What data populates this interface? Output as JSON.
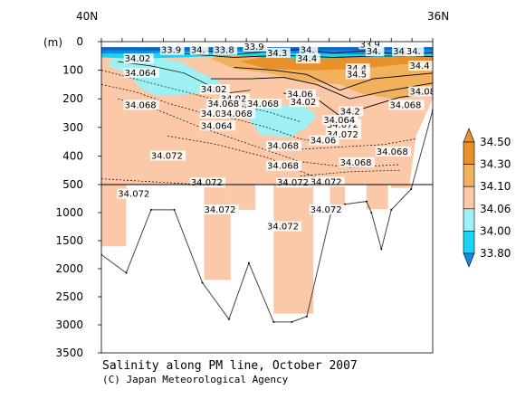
{
  "chart_data": {
    "type": "heatmap",
    "title": "Salinity along PM line, October 2007",
    "credit": "(C) Japan Meteorological Agency",
    "x_labels": {
      "left": "40N",
      "right": "36N"
    },
    "y_unit": "(m)",
    "y_ticks_upper": [
      0,
      100,
      200,
      300,
      400,
      500
    ],
    "y_ticks_lower": [
      1000,
      1500,
      2000,
      2500,
      3000,
      3500
    ],
    "y_break_depth": 500,
    "colorbar": {
      "levels": [
        "34.50",
        "34.30",
        "34.10",
        "34.06",
        "34.00",
        "33.80"
      ],
      "colors": [
        "#e9902a",
        "#f2b25d",
        "#fcc9a8",
        "#9ff0f2",
        "#18d6f2",
        "#1389e6"
      ]
    },
    "bottom_depth_profile": [
      {
        "x": 0.0,
        "depth": 1750
      },
      {
        "x": 0.075,
        "depth": 2075
      },
      {
        "x": 0.15,
        "depth": 950
      },
      {
        "x": 0.22,
        "depth": 950
      },
      {
        "x": 0.305,
        "depth": 2250
      },
      {
        "x": 0.385,
        "depth": 2900
      },
      {
        "x": 0.445,
        "depth": 1900
      },
      {
        "x": 0.52,
        "depth": 2950
      },
      {
        "x": 0.575,
        "depth": 2950
      },
      {
        "x": 0.62,
        "depth": 2850
      },
      {
        "x": 0.695,
        "depth": 950
      },
      {
        "x": 0.735,
        "depth": 850
      },
      {
        "x": 0.8,
        "depth": 800
      },
      {
        "x": 0.815,
        "depth": 1000
      },
      {
        "x": 0.845,
        "depth": 1650
      },
      {
        "x": 0.875,
        "depth": 950
      },
      {
        "x": 0.935,
        "depth": 580
      },
      {
        "x": 1.0,
        "depth": 240
      }
    ],
    "labels": [
      {
        "text": "34.02",
        "x": 0.07,
        "depth": 70
      },
      {
        "text": "34.064",
        "x": 0.07,
        "depth": 120
      },
      {
        "text": "34.068",
        "x": 0.07,
        "depth": 232
      },
      {
        "text": "34.02",
        "x": 0.3,
        "depth": 178
      },
      {
        "text": "34.02",
        "x": 0.36,
        "depth": 210
      },
      {
        "text": "34.068",
        "x": 0.32,
        "depth": 228
      },
      {
        "text": "34.06",
        "x": 0.3,
        "depth": 262
      },
      {
        "text": "34.068",
        "x": 0.36,
        "depth": 262
      },
      {
        "text": "34.064",
        "x": 0.3,
        "depth": 305
      },
      {
        "text": "34.068",
        "x": 0.44,
        "depth": 228
      },
      {
        "text": "34.06",
        "x": 0.56,
        "depth": 195
      },
      {
        "text": "34.02",
        "x": 0.57,
        "depth": 222
      },
      {
        "text": "34.072",
        "x": 0.15,
        "depth": 410
      },
      {
        "text": "34.068",
        "x": 0.5,
        "depth": 375
      },
      {
        "text": "34.068",
        "x": 0.5,
        "depth": 445
      },
      {
        "text": "34.2",
        "x": 0.72,
        "depth": 255
      },
      {
        "text": "34.072",
        "x": 0.68,
        "depth": 300
      },
      {
        "text": "34.072",
        "x": 0.68,
        "depth": 335
      },
      {
        "text": "34.06",
        "x": 0.63,
        "depth": 356
      },
      {
        "text": "34.064",
        "x": 0.67,
        "depth": 285
      },
      {
        "text": "34.068",
        "x": 0.72,
        "depth": 433
      },
      {
        "text": "34.068",
        "x": 0.83,
        "depth": 395
      },
      {
        "text": "34.068",
        "x": 0.87,
        "depth": 232
      },
      {
        "text": "34.08",
        "x": 0.93,
        "depth": 185
      },
      {
        "text": "34.4",
        "x": 0.59,
        "depth": 70
      },
      {
        "text": "34.3",
        "x": 0.5,
        "depth": 50
      },
      {
        "text": "34.4",
        "x": 0.74,
        "depth": 105
      },
      {
        "text": "34.5",
        "x": 0.74,
        "depth": 125
      },
      {
        "text": "34.4",
        "x": 0.93,
        "depth": 95
      },
      {
        "text": "34.072",
        "x": 0.05,
        "depth": 720
      },
      {
        "text": "34.072",
        "x": 0.31,
        "depth": 1000
      },
      {
        "text": "34.072",
        "x": 0.5,
        "depth": 1300
      },
      {
        "text": "34.072",
        "x": 0.63,
        "depth": 1000
      },
      {
        "text": "34.072",
        "x": 0.27,
        "depth": 520
      },
      {
        "text": "34.072",
        "x": 0.53,
        "depth": 520
      },
      {
        "text": "34.072",
        "x": 0.63,
        "depth": 505
      },
      {
        "text": "33.9",
        "x": 0.43,
        "depth": 28
      },
      {
        "text": "34.",
        "x": 0.27,
        "depth": 40
      },
      {
        "text": "33.8",
        "x": 0.34,
        "depth": 40
      },
      {
        "text": "34.",
        "x": 0.6,
        "depth": 40
      },
      {
        "text": "33.9",
        "x": 0.78,
        "depth": 20
      },
      {
        "text": "34.1",
        "x": 0.88,
        "depth": 45
      },
      {
        "text": "34.",
        "x": 0.92,
        "depth": 45
      },
      {
        "text": "34.",
        "x": 0.8,
        "depth": 45
      },
      {
        "text": "33.9",
        "x": 0.18,
        "depth": 40
      }
    ]
  }
}
